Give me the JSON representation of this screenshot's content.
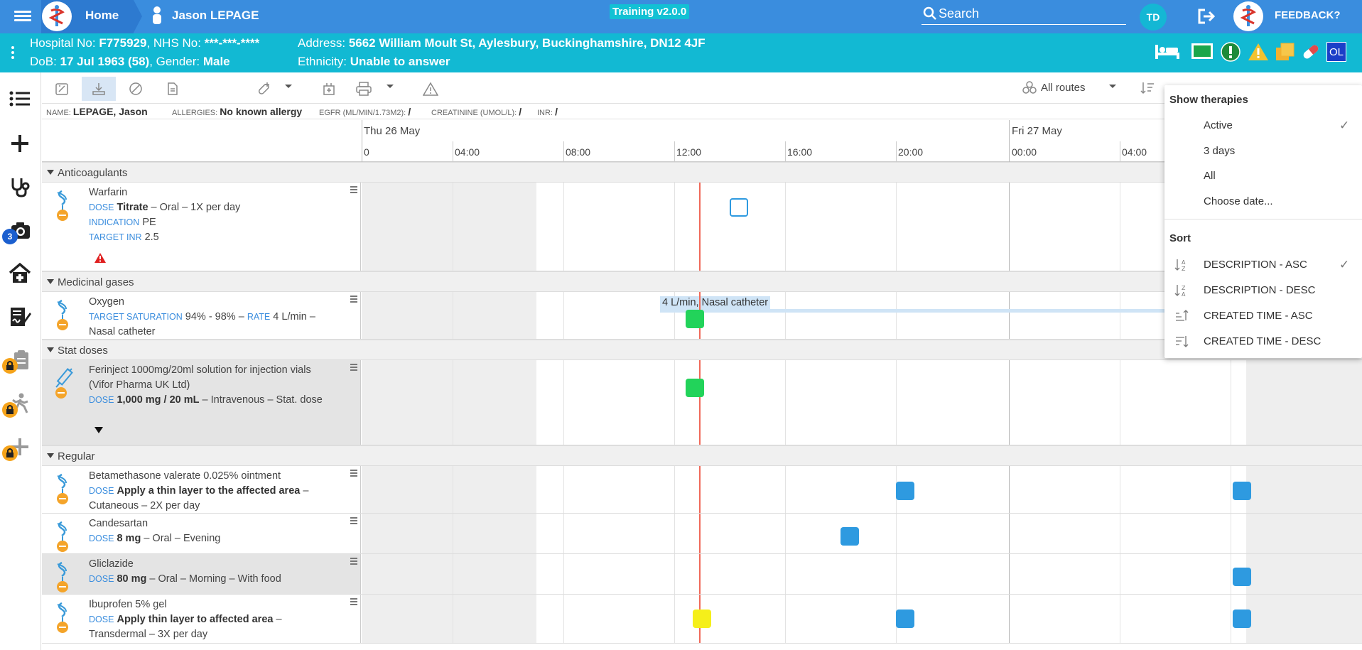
{
  "topbar": {
    "home": "Home",
    "patient": "Jason LEPAGE",
    "training": "Training v2.0.0",
    "search_placeholder": "Search",
    "user_initials": "TD",
    "feedback": "FEEDBACK?",
    "color": "#3a8dde"
  },
  "banner": {
    "hosp_label": "Hospital No: ",
    "hosp_value": "F775929",
    "nhs_label": ", NHS No: ",
    "nhs_value": "***-***-****",
    "dob_label": "DoB: ",
    "dob_value": "17 Jul 1963 (58)",
    "gender_label": ", Gender: ",
    "gender_value": "Male",
    "address_label": "Address: ",
    "address_value": "5662 William Moult St, Aylesbury, Buckinghamshire, DN12 4JF",
    "ethnicity_label": "Ethnicity: ",
    "ethnicity_value": "Unable to answer",
    "ol_badge": "OL",
    "color": "#12b9d3"
  },
  "leftnav": {
    "camera_badge": "3"
  },
  "toolbar": {
    "routes": "All routes"
  },
  "infostrip": {
    "name_label": "NAME:",
    "name_value": "LEPAGE, Jason",
    "allergies_label": "ALLERGIES:",
    "allergies_value": "No known allergy",
    "egfr_label": "EGFR (ML/MIN/1.73M2):",
    "egfr_value": "/",
    "creat_label": "CREATININE (UMOL/L):",
    "creat_value": "/",
    "inr_label": "INR:",
    "inr_value": "/"
  },
  "timeline": {
    "day1": "Thu 26 May",
    "day2": "Fri 27 May",
    "hours": [
      "0",
      "04:00",
      "08:00",
      "12:00",
      "16:00",
      "20:00",
      "00:00",
      "04:00"
    ]
  },
  "sections": {
    "anticoag": "Anticoagulants",
    "gases": "Medicinal gases",
    "stat": "Stat doses",
    "regular": "Regular"
  },
  "meds": {
    "warfarin": {
      "name": "Warfarin",
      "dose_label": "DOSE",
      "dose": "Titrate",
      "rest": " – Oral – 1X per day",
      "indication_label": "INDICATION",
      "indication": "PE",
      "inr_label": "TARGET INR",
      "inr": "2.5"
    },
    "oxygen": {
      "name": "Oxygen",
      "sat_label": "TARGET SATURATION",
      "sat": "94% - 98% –",
      "rate_label": "RATE",
      "rate": "4 L/min –",
      "line3": "Nasal catheter",
      "tl_label": "4 L/min, Nasal catheter"
    },
    "ferinject": {
      "name": "Ferinject 1000mg/20ml solution for injection vials (Vifor Pharma UK Ltd)",
      "dose_label": "DOSE",
      "dose": "1,000 mg / 20 mL",
      "rest": " – Intravenous – Stat. dose"
    },
    "betamethasone": {
      "name": "Betamethasone valerate 0.025% ointment",
      "dose_label": "DOSE",
      "dose": "Apply a thin layer to the affected area",
      "rest": " – Cutaneous – 2X per day"
    },
    "candesartan": {
      "name": "Candesartan",
      "dose_label": "DOSE",
      "dose": "8 mg",
      "rest": " – Oral – Evening"
    },
    "gliclazide": {
      "name": "Gliclazide",
      "dose_label": "DOSE",
      "dose": "80 mg",
      "rest": " – Oral – Morning – With food"
    },
    "ibuprofen": {
      "name": "Ibuprofen 5% gel",
      "dose_label": "DOSE",
      "dose": "Apply thin layer to affected area",
      "rest": " – Transdermal – 3X per day"
    }
  },
  "dropdown": {
    "show_header": "Show therapies",
    "show_items": [
      "Active",
      "3 days",
      "All",
      "Choose date..."
    ],
    "sort_header": "Sort",
    "sort_items": [
      "DESCRIPTION - ASC",
      "DESCRIPTION - DESC",
      "CREATED TIME - ASC",
      "CREATED TIME - DESC"
    ],
    "check": "✓"
  },
  "colors": {
    "given": "#22d35a",
    "planned": "#2e9ae0",
    "pending": "#f5ef1a",
    "now_line": "#f06a5a"
  }
}
